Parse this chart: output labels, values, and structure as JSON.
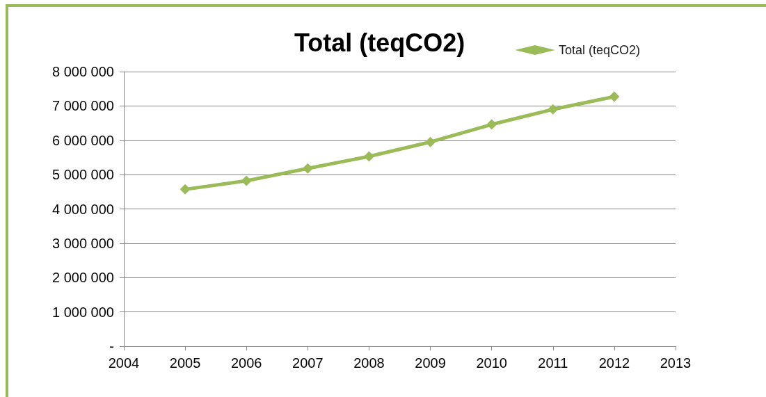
{
  "chart_data": {
    "type": "line",
    "title": "Total (teqCO2)",
    "x": [
      2005,
      2006,
      2007,
      2008,
      2009,
      2010,
      2011,
      2012
    ],
    "series": [
      {
        "name": "Total (teqCO2)",
        "color": "#9bbb59",
        "values": [
          4570000,
          4820000,
          5180000,
          5530000,
          5950000,
          6460000,
          6900000,
          7270000
        ]
      }
    ],
    "xlim": [
      2004,
      2013
    ],
    "xticks": [
      2004,
      2005,
      2006,
      2007,
      2008,
      2009,
      2010,
      2011,
      2012,
      2013
    ],
    "ylim": [
      0,
      8000000
    ],
    "yticks": [
      {
        "value": 0,
        "label": "-"
      },
      {
        "value": 1000000,
        "label": "1 000 000"
      },
      {
        "value": 2000000,
        "label": "2 000 000"
      },
      {
        "value": 3000000,
        "label": "3 000 000"
      },
      {
        "value": 4000000,
        "label": "4 000 000"
      },
      {
        "value": 5000000,
        "label": "5 000 000"
      },
      {
        "value": 6000000,
        "label": "6 000 000"
      },
      {
        "value": 7000000,
        "label": "7 000 000"
      },
      {
        "value": 8000000,
        "label": "8 000 000"
      }
    ],
    "grid": "y",
    "legend": "top right",
    "marker": "diamond",
    "line_style": "solid"
  }
}
